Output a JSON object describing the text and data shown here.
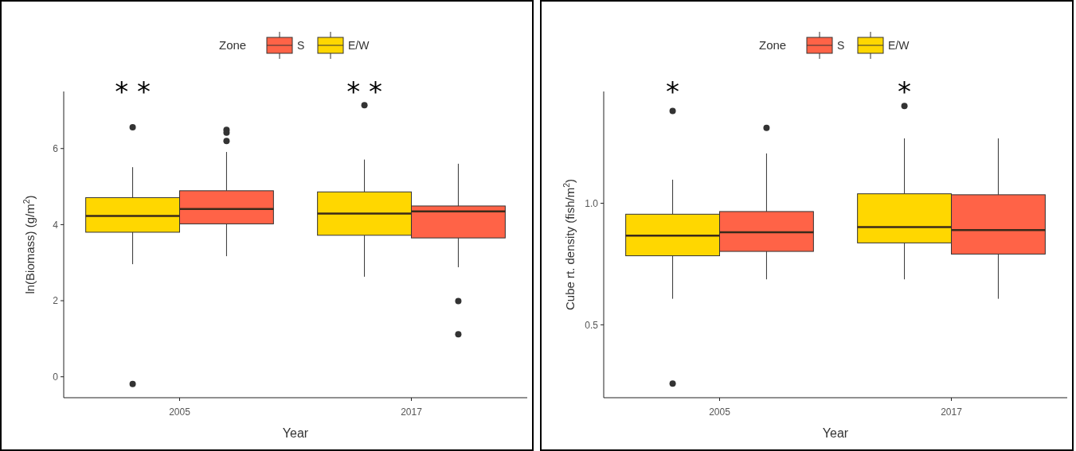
{
  "chart_data": [
    {
      "type": "box",
      "categories": [
        "2005",
        "2017"
      ],
      "xlabel": "Year",
      "ylabel": "ln(Biomass) (g/m$^{2}$)",
      "legend_title": "Zone",
      "legend": "top",
      "grid": false,
      "ylim": [
        -0.55,
        7.5
      ],
      "yticks": [
        0,
        2,
        4,
        6
      ],
      "series": [
        {
          "name": "S",
          "color": "#ff6347",
          "boxes": [
            {
              "low": 3.17,
              "q1": 4.02,
              "median": 4.41,
              "q3": 4.89,
              "high": 5.91,
              "outliers": [
                6.49,
                6.42,
                6.2
              ]
            },
            {
              "low": 2.88,
              "q1": 3.65,
              "median": 4.35,
              "q3": 4.49,
              "high": 5.6,
              "outliers": [
                1.99,
                1.12
              ]
            }
          ]
        },
        {
          "name": "E/W",
          "color": "#ffd700",
          "boxes": [
            {
              "low": 2.96,
              "q1": 3.8,
              "median": 4.23,
              "q3": 4.71,
              "high": 5.51,
              "outliers": [
                6.56,
                -0.19
              ]
            },
            {
              "low": 2.63,
              "q1": 3.72,
              "median": 4.29,
              "q3": 4.86,
              "high": 5.71,
              "outliers": [
                7.14
              ]
            }
          ]
        }
      ],
      "annotations": [
        "* *",
        "* *"
      ]
    },
    {
      "type": "box",
      "categories": [
        "2005",
        "2017"
      ],
      "xlabel": "Year",
      "ylabel": "Cube rt. density (fish/m$^{2}$)",
      "legend_title": "Zone",
      "legend": "top",
      "grid": false,
      "ylim": [
        0.2,
        1.46
      ],
      "yticks": [
        {
          "value": 0.5,
          "label": "0.5"
        },
        {
          "value": 1,
          "label": "1.0"
        }
      ],
      "series": [
        {
          "name": "S",
          "color": "#ff6347",
          "boxes": [
            {
              "low": 0.687,
              "q1": 0.802,
              "median": 0.881,
              "q3": 0.966,
              "high": 1.205,
              "outliers": [
                1.31
              ]
            },
            {
              "low": 0.607,
              "q1": 0.791,
              "median": 0.89,
              "q3": 1.035,
              "high": 1.267
            }
          ]
        },
        {
          "name": "E/W",
          "color": "#ffd700",
          "boxes": [
            {
              "low": 0.607,
              "q1": 0.784,
              "median": 0.867,
              "q3": 0.955,
              "high": 1.097,
              "outliers": [
                1.38,
                0.258
              ]
            },
            {
              "low": 0.687,
              "q1": 0.837,
              "median": 0.902,
              "q3": 1.039,
              "high": 1.267,
              "outliers": [
                1.4
              ]
            }
          ]
        }
      ],
      "annotations": [
        "*",
        "*"
      ]
    }
  ]
}
